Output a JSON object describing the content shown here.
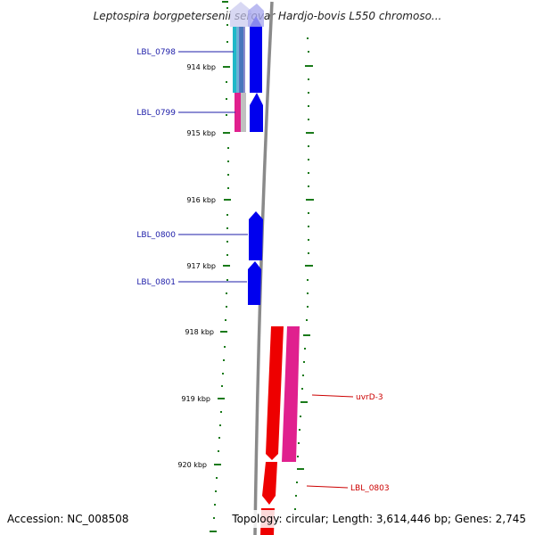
{
  "title": "Leptospira borgpetersenii serovar Hardjo-bovis L550 chromoso...",
  "footer": {
    "accession": "Accession: NC_008508",
    "topology": "Topology: circular; Length: 3,614,446 bp; Genes: 2,745"
  },
  "ticks": [
    "914 kbp",
    "915 kbp",
    "916 kbp",
    "917 kbp",
    "918 kbp",
    "919 kbp",
    "920 kbp"
  ],
  "genes": [
    {
      "label": "LBL_0798",
      "color": "#1c1ca8"
    },
    {
      "label": "LBL_0799",
      "color": "#1c1ca8"
    },
    {
      "label": "LBL_0800",
      "color": "#1c1ca8"
    },
    {
      "label": "LBL_0801",
      "color": "#1c1ca8"
    },
    {
      "label": "uvrD-3",
      "color": "#cc0000"
    },
    {
      "label": "LBL_0803",
      "color": "#cc0000"
    }
  ],
  "colors": {
    "backbone": "#888888",
    "tick_marks": "#1a7a1a",
    "forward_gene": "#0000ee",
    "reverse_gene": "#ee0000",
    "cds_forward_frame": "#e0208e",
    "cds_cyan": "#20b8c8"
  }
}
